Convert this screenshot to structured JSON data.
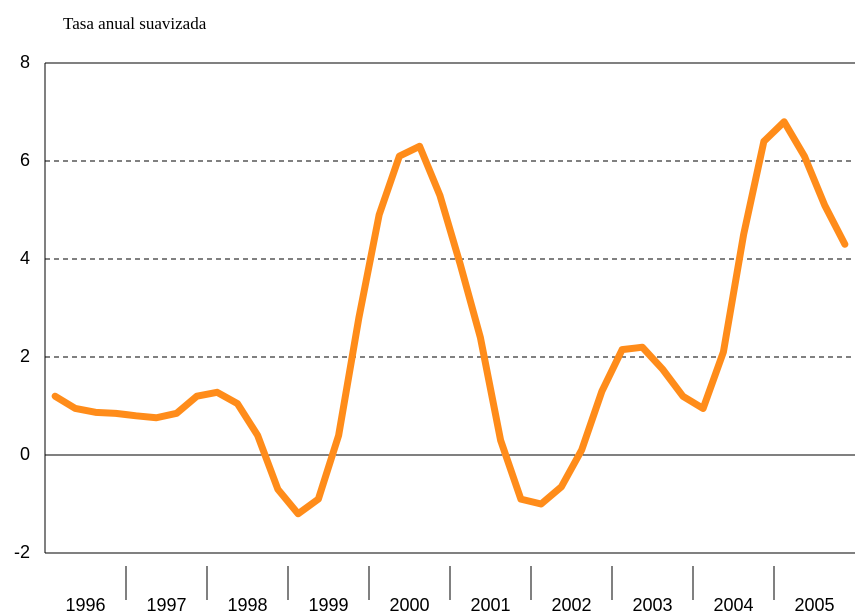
{
  "chart_data": {
    "type": "line",
    "title": "Tasa anual suavizada",
    "categories": [
      "1996",
      null,
      null,
      null,
      "1997",
      null,
      null,
      null,
      "1998",
      null,
      null,
      null,
      "1999",
      null,
      null,
      null,
      "2000",
      null,
      null,
      null,
      "2001",
      null,
      null,
      null,
      "2002",
      null,
      null,
      null,
      "2003",
      null,
      null,
      null,
      "2004",
      null,
      null,
      null,
      "2005",
      null,
      null,
      null
    ],
    "series": [
      {
        "name": "Tasa anual suavizada",
        "color": "#ff8c1a",
        "values": [
          1.2,
          0.95,
          0.87,
          0.85,
          0.8,
          0.76,
          0.85,
          1.2,
          1.28,
          1.05,
          0.4,
          -0.7,
          -1.2,
          -0.9,
          0.4,
          2.8,
          4.9,
          6.1,
          6.3,
          5.3,
          3.9,
          2.4,
          0.3,
          -0.9,
          -1.0,
          -0.65,
          0.1,
          1.3,
          2.15,
          2.2,
          1.75,
          1.2,
          0.95,
          2.1,
          4.5,
          6.4,
          6.8,
          6.1,
          5.1,
          4.3
        ]
      }
    ],
    "ylim": [
      -2,
      8
    ],
    "yticks": [
      -2,
      0,
      2,
      4,
      6,
      8
    ],
    "grid": true
  }
}
